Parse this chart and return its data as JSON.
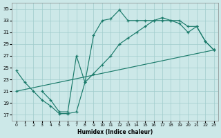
{
  "bg_color": "#cce8e8",
  "line_color": "#1a7a6a",
  "xlabel": "Humidex (Indice chaleur)",
  "xlim": [
    -0.5,
    23.5
  ],
  "ylim": [
    16,
    36
  ],
  "yticks": [
    17,
    19,
    21,
    23,
    25,
    27,
    29,
    31,
    33,
    35
  ],
  "xticks": [
    0,
    1,
    2,
    3,
    4,
    5,
    6,
    7,
    8,
    9,
    10,
    11,
    12,
    13,
    14,
    15,
    16,
    17,
    18,
    19,
    20,
    21,
    22,
    23
  ],
  "curve1_x": [
    0,
    1,
    2,
    3,
    4,
    5,
    6,
    7,
    8,
    9,
    10,
    11,
    12,
    13,
    14,
    15,
    16,
    17,
    18,
    19,
    20,
    21,
    22,
    23
  ],
  "curve1_y": [
    24.5,
    22.5,
    21.0,
    19.5,
    18.5,
    17.2,
    17.2,
    17.5,
    22.5,
    30.5,
    33.0,
    33.3,
    34.8,
    33.0,
    33.0,
    33.0,
    33.0,
    33.0,
    33.0,
    32.5,
    31.0,
    32.0,
    29.5,
    28.0
  ],
  "curve2_x": [
    0,
    23
  ],
  "curve2_y": [
    21.0,
    28.0
  ],
  "curve3_x": [
    3,
    4,
    5,
    6,
    7,
    8,
    9,
    10,
    11,
    12,
    13,
    14,
    15,
    16,
    17,
    18,
    19,
    20,
    21,
    22,
    23
  ],
  "curve3_y": [
    21.0,
    19.5,
    17.5,
    17.5,
    27.0,
    22.5,
    24.0,
    25.5,
    27.0,
    29.0,
    30.0,
    31.0,
    32.0,
    33.0,
    33.5,
    33.0,
    33.0,
    32.0,
    32.0,
    29.5,
    28.0
  ]
}
